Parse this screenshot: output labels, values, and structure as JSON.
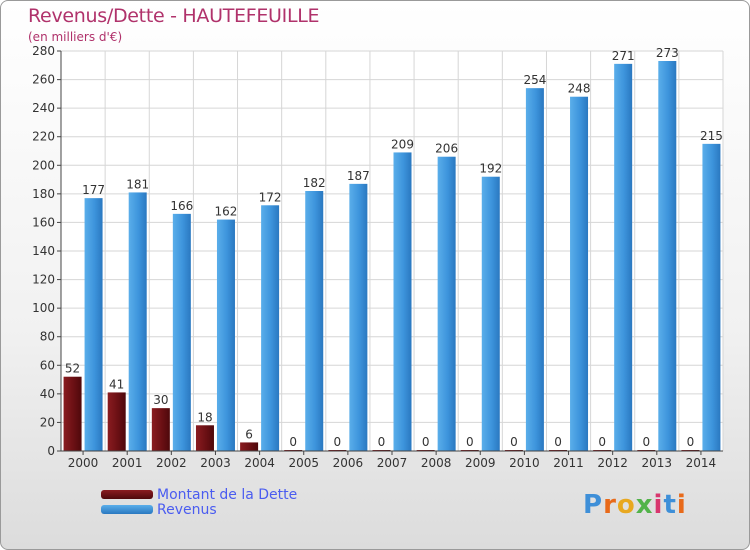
{
  "title": "Revenus/Dette - HAUTEFEUILLE",
  "subtitle": "(en milliers d'€)",
  "colors": {
    "dette": "#6b1014",
    "revenus": "#3d94dc",
    "title": "#b0326b",
    "legend": "#4a5cf0"
  },
  "chart_data": {
    "type": "bar",
    "categories": [
      "2000",
      "2001",
      "2002",
      "2003",
      "2004",
      "2005",
      "2006",
      "2007",
      "2008",
      "2009",
      "2010",
      "2011",
      "2012",
      "2013",
      "2014"
    ],
    "series": [
      {
        "name": "Montant de la Dette",
        "values": [
          52,
          41,
          30,
          18,
          6,
          0,
          0,
          0,
          0,
          0,
          0,
          0,
          0,
          0,
          0
        ]
      },
      {
        "name": "Revenus",
        "values": [
          177,
          181,
          166,
          162,
          172,
          182,
          187,
          209,
          206,
          192,
          254,
          248,
          271,
          273,
          215
        ]
      }
    ],
    "ylim": [
      0,
      280
    ],
    "yticks": [
      0,
      20,
      40,
      60,
      80,
      100,
      120,
      140,
      160,
      180,
      200,
      220,
      240,
      260,
      280
    ],
    "grid": true,
    "legend": "bottom-left"
  },
  "logo": {
    "letters": [
      "P",
      "r",
      "o",
      "x",
      "i",
      "t",
      "i"
    ]
  }
}
